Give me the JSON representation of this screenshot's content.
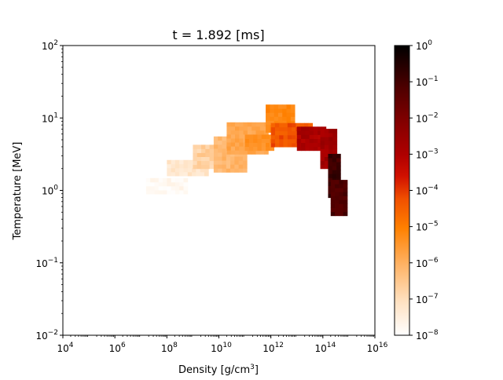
{
  "chart_data": {
    "type": "heatmap",
    "title": "t = 1.892 [ms]",
    "xlabel": "Density [g/cm",
    "xlabel_sup": "3",
    "xlabel_end": "]",
    "ylabel": "Temperature [MeV]",
    "x_scale": "log",
    "y_scale": "log",
    "xlim": [
      10000,
      10000000000000000
    ],
    "ylim": [
      0.01,
      100
    ],
    "x_ticks": [
      {
        "value": 10000,
        "base": "10",
        "exp": "4"
      },
      {
        "value": 1000000,
        "base": "10",
        "exp": "6"
      },
      {
        "value": 100000000,
        "base": "10",
        "exp": "8"
      },
      {
        "value": 10000000000,
        "base": "10",
        "exp": "10"
      },
      {
        "value": 1000000000000,
        "base": "10",
        "exp": "12"
      },
      {
        "value": 100000000000000,
        "base": "10",
        "exp": "14"
      },
      {
        "value": 10000000000000000,
        "base": "10",
        "exp": "16"
      }
    ],
    "y_ticks": [
      {
        "value": 0.01,
        "base": "10",
        "exp": "−2"
      },
      {
        "value": 0.1,
        "base": "10",
        "exp": "−1"
      },
      {
        "value": 1,
        "base": "10",
        "exp": "0"
      },
      {
        "value": 10,
        "base": "10",
        "exp": "1"
      },
      {
        "value": 100,
        "base": "10",
        "exp": "2"
      }
    ],
    "colorbar": {
      "scale": "log",
      "range": [
        1e-08,
        1
      ],
      "colormap": "gist_heat_r",
      "ticks": [
        {
          "value": 1e-08,
          "base": "10",
          "exp": "−8"
        },
        {
          "value": 1e-07,
          "base": "10",
          "exp": "−7"
        },
        {
          "value": 1e-06,
          "base": "10",
          "exp": "−6"
        },
        {
          "value": 1e-05,
          "base": "10",
          "exp": "−5"
        },
        {
          "value": 0.0001,
          "base": "10",
          "exp": "−4"
        },
        {
          "value": 0.001,
          "base": "10",
          "exp": "−3"
        },
        {
          "value": 0.01,
          "base": "10",
          "exp": "−2"
        },
        {
          "value": 0.1,
          "base": "10",
          "exp": "−1"
        },
        {
          "value": 1,
          "base": "10",
          "exp": "0"
        }
      ]
    },
    "grid": false,
    "regions": [
      {
        "log_rho": [
          7.2,
          8.7
        ],
        "log_T": [
          -0.05,
          0.12
        ],
        "log_value": [
          -8.0,
          -7.6
        ]
      },
      {
        "log_rho": [
          8.0,
          9.5
        ],
        "log_T": [
          0.2,
          0.38
        ],
        "log_value": [
          -7.5,
          -7.0
        ]
      },
      {
        "log_rho": [
          9.0,
          10.0
        ],
        "log_T": [
          0.3,
          0.6
        ],
        "log_value": [
          -7.0,
          -6.4
        ]
      },
      {
        "log_rho": [
          9.8,
          11.0
        ],
        "log_T": [
          0.25,
          0.7
        ],
        "log_value": [
          -6.4,
          -5.9
        ]
      },
      {
        "log_rho": [
          10.3,
          11.8
        ],
        "log_T": [
          0.5,
          0.9
        ],
        "log_value": [
          -6.0,
          -5.6
        ]
      },
      {
        "log_rho": [
          11.0,
          12.0
        ],
        "log_T": [
          0.55,
          0.75
        ],
        "log_value": [
          -5.6,
          -5.2
        ]
      },
      {
        "log_rho": [
          11.8,
          12.8
        ],
        "log_T": [
          0.8,
          1.15
        ],
        "log_value": [
          -5.4,
          -5.0
        ]
      },
      {
        "log_rho": [
          12.0,
          13.6
        ],
        "log_T": [
          0.6,
          0.9
        ],
        "log_value": [
          -4.6,
          -4.0
        ]
      },
      {
        "log_rho": [
          13.0,
          14.0
        ],
        "log_T": [
          0.55,
          0.85
        ],
        "log_value": [
          -3.2,
          -2.6
        ]
      },
      {
        "log_rho": [
          13.9,
          14.4
        ],
        "log_T": [
          0.3,
          0.8
        ],
        "log_value": [
          -3.0,
          -2.4
        ]
      },
      {
        "log_rho": [
          14.2,
          14.6
        ],
        "log_T": [
          -0.1,
          0.5
        ],
        "log_value": [
          -1.2,
          -0.6
        ]
      },
      {
        "log_rho": [
          14.3,
          14.8
        ],
        "log_T": [
          -0.35,
          0.1
        ],
        "log_value": [
          -1.4,
          -0.9
        ]
      }
    ]
  }
}
